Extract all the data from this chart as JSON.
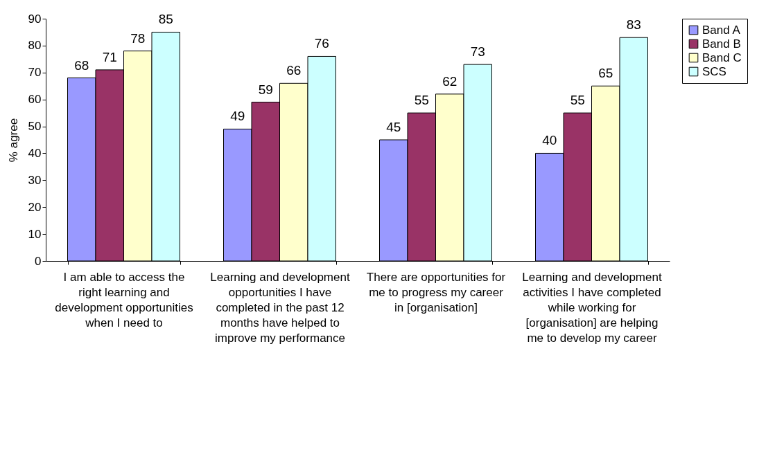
{
  "chart_data": {
    "type": "bar",
    "ylabel": "% agree",
    "categories": [
      "I am able to access the right learning and development opportunities when I need to",
      "Learning and development opportunities I have completed in the past 12 months have helped to improve my performance",
      "There are opportunities for me to progress my career in [organisation]",
      "Learning and development activities I have completed while working for [organisation] are helping me to develop my career"
    ],
    "series": [
      {
        "name": "Band A",
        "color": "#9999ff",
        "values": [
          68,
          49,
          45,
          40
        ]
      },
      {
        "name": "Band B",
        "color": "#993366",
        "values": [
          71,
          59,
          55,
          55
        ]
      },
      {
        "name": "Band C",
        "color": "#ffffcc",
        "values": [
          78,
          66,
          62,
          65
        ]
      },
      {
        "name": "SCS",
        "color": "#ccffff",
        "values": [
          85,
          76,
          73,
          83
        ]
      }
    ],
    "ylim": [
      0,
      90
    ],
    "yticks": [
      0,
      10,
      20,
      30,
      40,
      50,
      60,
      70,
      80,
      90
    ],
    "data_labels": true,
    "legend": "right",
    "grid": false
  }
}
